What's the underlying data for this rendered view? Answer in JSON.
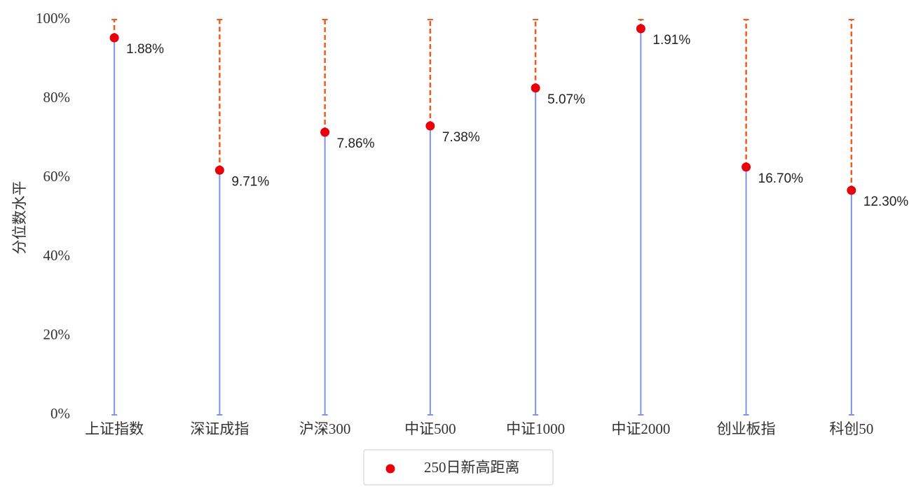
{
  "chart_data": {
    "type": "lollipop",
    "y_label": "分位数水平",
    "categories": [
      "上证指数",
      "深证成指",
      "沪深300",
      "中证500",
      "中证1000",
      "中证2000",
      "创业板指",
      "科创50"
    ],
    "series": [
      {
        "name": "250日新高距离",
        "color": "#e8000b",
        "values": [
          95.4,
          61.9,
          71.5,
          73.1,
          82.7,
          97.7,
          62.7,
          56.8
        ],
        "value_labels": [
          "1.88%",
          "9.71%",
          "7.86%",
          "7.38%",
          "5.07%",
          "1.91%",
          "16.70%",
          "12.30%"
        ]
      }
    ],
    "stem_color": "#7b96e8",
    "gap_color": "#f05a1e",
    "ylim": [
      0,
      100
    ],
    "yticks": [
      {
        "value": 0,
        "label": "0%"
      },
      {
        "value": 20,
        "label": "20%"
      },
      {
        "value": 40,
        "label": "40%"
      },
      {
        "value": 60,
        "label": "60%"
      },
      {
        "value": 80,
        "label": "80%"
      },
      {
        "value": 100,
        "label": "100%"
      }
    ],
    "legend": "bottom"
  }
}
